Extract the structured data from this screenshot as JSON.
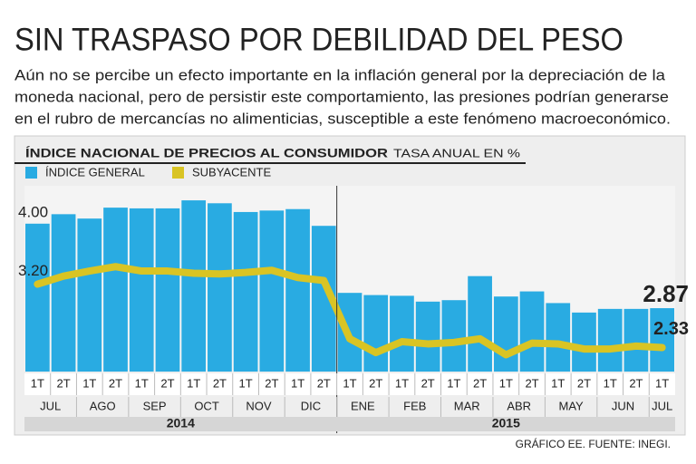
{
  "chart_data": {
    "type": "bar_line",
    "title": "SIN TRASPASO POR DEBILIDAD DEL PESO",
    "subtitle": [
      "Aún no se percibe un efecto importante en la inflación general por la depreciación de la",
      "moneda nacional, pero de persistir este comportamiento, las presiones podrían generarse",
      "en el rubro de mercancías no alimenticias, susceptible a este fenómeno macroeconómico."
    ],
    "chart_title": "ÍNDICE NACIONAL DE PRECIOS AL CONSUMIDOR",
    "chart_unit": "TASA ANUAL EN %",
    "categories": [
      "1T",
      "2T",
      "1T",
      "2T",
      "1T",
      "2T",
      "1T",
      "2T",
      "1T",
      "2T",
      "1T",
      "2T",
      "1T",
      "2T",
      "1T",
      "2T",
      "1T",
      "2T",
      "1T",
      "2T",
      "1T",
      "2T",
      "1T",
      "2T",
      "1T"
    ],
    "months": [
      "JUL",
      "AGO",
      "SEP",
      "OCT",
      "NOV",
      "DIC",
      "ENE",
      "FEB",
      "MAR",
      "ABR",
      "MAY",
      "JUN",
      "JUL"
    ],
    "years": [
      "2014",
      "2015"
    ],
    "series": [
      {
        "name": "ÍNDICE GENERAL",
        "color": "#29abe2",
        "kind": "bar",
        "values": [
          4.03,
          4.16,
          4.1,
          4.25,
          4.24,
          4.24,
          4.35,
          4.31,
          4.19,
          4.21,
          4.23,
          4.0,
          3.08,
          3.05,
          3.04,
          2.96,
          2.98,
          3.31,
          3.03,
          3.1,
          2.94,
          2.81,
          2.86,
          2.86,
          2.87
        ]
      },
      {
        "name": "SUBYACENTE",
        "color": "#d9c424",
        "kind": "line",
        "values": [
          3.2,
          3.31,
          3.38,
          3.44,
          3.38,
          3.38,
          3.35,
          3.34,
          3.36,
          3.39,
          3.29,
          3.25,
          2.45,
          2.26,
          2.41,
          2.38,
          2.4,
          2.45,
          2.23,
          2.39,
          2.38,
          2.31,
          2.31,
          2.35,
          2.33
        ]
      }
    ],
    "ylim": [
      2,
      4.55
    ],
    "yticks": [
      {
        "value": 3.2,
        "label": "3.20"
      },
      {
        "value": 4,
        "label": "4.00"
      }
    ],
    "source": "GRÁFICO EE. FUENTE: INEGI."
  }
}
